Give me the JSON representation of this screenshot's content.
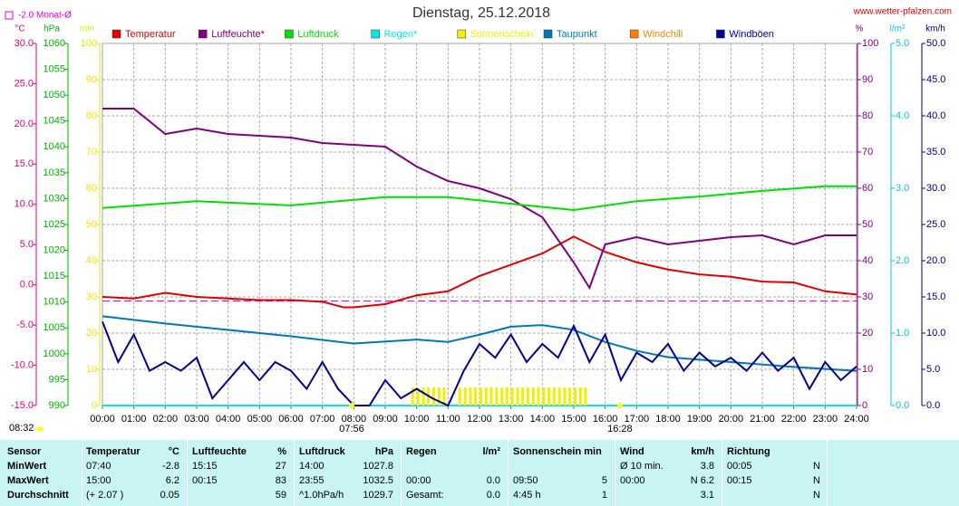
{
  "chart_data": {
    "type": "line",
    "title": "Dienstag, 25.12.2018",
    "source": "www.wetter-pfalzen.com",
    "time_label": "08:32",
    "monthly_avg": {
      "label": "-2.0 Monat-Ø",
      "value": -2.0,
      "axis": "temp",
      "color": "#e000e0"
    },
    "sunrise": {
      "label": "07:56",
      "x": 7.933
    },
    "sunset": {
      "label": "16:28",
      "x": 16.467
    },
    "xlim": [
      0,
      24
    ],
    "xticks": [
      {
        "value": 0,
        "label": "00:00"
      },
      {
        "value": 1,
        "label": "01:00"
      },
      {
        "value": 2,
        "label": "02:00"
      },
      {
        "value": 3,
        "label": "03:00"
      },
      {
        "value": 4,
        "label": "04:00"
      },
      {
        "value": 5,
        "label": "05:00"
      },
      {
        "value": 6,
        "label": "06:00"
      },
      {
        "value": 7,
        "label": "07:00"
      },
      {
        "value": 8,
        "label": "08:00"
      },
      {
        "value": 9,
        "label": "09:00"
      },
      {
        "value": 10,
        "label": "10:00"
      },
      {
        "value": 11,
        "label": "11:00"
      },
      {
        "value": 12,
        "label": "12:00"
      },
      {
        "value": 13,
        "label": "13:00"
      },
      {
        "value": 14,
        "label": "14:00"
      },
      {
        "value": 15,
        "label": "15:00"
      },
      {
        "value": 16,
        "label": "16:00"
      },
      {
        "value": 17,
        "label": "17:00"
      },
      {
        "value": 18,
        "label": "18:00"
      },
      {
        "value": 19,
        "label": "19:00"
      },
      {
        "value": 20,
        "label": "20:00"
      },
      {
        "value": 21,
        "label": "21:00"
      },
      {
        "value": 22,
        "label": "22:00"
      },
      {
        "value": 23,
        "label": "23:00"
      },
      {
        "value": 24,
        "label": "24:00"
      }
    ],
    "grid": true,
    "axes": {
      "temp": {
        "unit": "°C",
        "color": "#e0007a",
        "lim": [
          -15,
          30
        ],
        "ticks": [
          {
            "value": -15,
            "label": "-15.0"
          },
          {
            "value": -10,
            "label": "-10.0"
          },
          {
            "value": -5,
            "label": "-5.0"
          },
          {
            "value": 0,
            "label": "0.0"
          },
          {
            "value": 5,
            "label": "5.0"
          },
          {
            "value": 10,
            "label": "10.0"
          },
          {
            "value": 15,
            "label": "15.0"
          },
          {
            "value": 20,
            "label": "20.0"
          },
          {
            "value": 25,
            "label": "25.0"
          },
          {
            "value": 30,
            "label": "30.0"
          }
        ]
      },
      "press": {
        "unit": "hPa",
        "color": "#00b000",
        "lim": [
          990,
          1060
        ],
        "ticks": [
          990,
          995,
          1000,
          1005,
          1010,
          1015,
          1020,
          1025,
          1030,
          1035,
          1040,
          1045,
          1050,
          1055,
          1060
        ]
      },
      "sun": {
        "unit": "min",
        "color": "#e8e800",
        "lim": [
          0,
          100
        ],
        "ticks": [
          0,
          10,
          20,
          30,
          40,
          50,
          60,
          70,
          80,
          90,
          100
        ]
      },
      "hum": {
        "unit": "%",
        "color": "#800080",
        "lim": [
          0,
          100
        ],
        "ticks": [
          0,
          10,
          20,
          30,
          40,
          50,
          60,
          70,
          80,
          90,
          100
        ]
      },
      "rain": {
        "unit": "l/m²",
        "color": "#00c8e0",
        "lim": [
          0,
          5
        ],
        "ticks": [
          {
            "value": 0,
            "label": "0.0"
          },
          {
            "value": 1,
            "label": "1.0"
          },
          {
            "value": 2,
            "label": "2.0"
          },
          {
            "value": 3,
            "label": "3.0"
          },
          {
            "value": 4,
            "label": "4.0"
          },
          {
            "value": 5,
            "label": "5.0"
          }
        ]
      },
      "wind": {
        "unit": "km/h",
        "color": "#000080",
        "lim": [
          0,
          50
        ],
        "ticks": [
          {
            "value": 0,
            "label": "0.0"
          },
          {
            "value": 5,
            "label": "5.0"
          },
          {
            "value": 10,
            "label": "10.0"
          },
          {
            "value": 15,
            "label": "15.0"
          },
          {
            "value": 20,
            "label": "20.0"
          },
          {
            "value": 25,
            "label": "25.0"
          },
          {
            "value": 30,
            "label": "30.0"
          },
          {
            "value": 35,
            "label": "35.0"
          },
          {
            "value": 40,
            "label": "40.0"
          },
          {
            "value": 45,
            "label": "45.0"
          },
          {
            "value": 50,
            "label": "50.0"
          }
        ]
      }
    },
    "series": [
      {
        "name": "Temperatur",
        "color": "#e00000",
        "axis": "temp",
        "x": [
          0,
          1,
          2,
          3,
          4,
          5,
          6,
          7,
          7.67,
          8,
          9,
          10,
          11,
          12,
          13,
          14,
          15,
          16,
          17,
          18,
          19,
          20,
          21,
          22,
          23,
          24
        ],
        "values": [
          -1.5,
          -1.7,
          -1.0,
          -1.5,
          -1.7,
          -1.9,
          -1.9,
          -2.1,
          -2.8,
          -2.8,
          -2.4,
          -1.3,
          -0.8,
          1.1,
          2.5,
          3.9,
          6.0,
          4.1,
          2.8,
          1.9,
          1.3,
          1.0,
          0.4,
          0.3,
          -0.8,
          -1.2
        ]
      },
      {
        "name": "Luftfeuchte*",
        "color": "#800080",
        "axis": "hum",
        "x": [
          0,
          1,
          2,
          3,
          4,
          5,
          6,
          7,
          8,
          9,
          10,
          11,
          12,
          13,
          14,
          15,
          15.5,
          16,
          17,
          18,
          19,
          20,
          21,
          22,
          23,
          24
        ],
        "values": [
          82,
          82,
          75,
          76.5,
          75,
          74.5,
          74,
          72.5,
          72,
          71.5,
          66,
          62,
          60,
          57,
          52,
          39.5,
          32.5,
          44.5,
          46.5,
          44.5,
          45.5,
          46.5,
          47,
          44.5,
          47,
          47
        ]
      },
      {
        "name": "Luftdruck",
        "color": "#00e000",
        "axis": "press",
        "x": [
          0,
          3,
          6,
          9,
          11,
          13,
          15,
          17,
          19,
          21,
          23,
          24
        ],
        "values": [
          1028.2,
          1029.5,
          1028.7,
          1030.3,
          1030.3,
          1029.0,
          1027.8,
          1029.5,
          1030.4,
          1031.5,
          1032.4,
          1032.4
        ]
      },
      {
        "name": "Regen*",
        "color": "#00e8e8",
        "axis": "rain",
        "x": [
          0,
          24
        ],
        "values": [
          0,
          0
        ]
      },
      {
        "name": "Sonnenschein",
        "color": "#f0f000",
        "axis": "sun",
        "bars": true,
        "x": [
          9.83,
          10,
          10.17,
          10.33,
          10.5,
          10.67,
          10.83,
          11.33,
          11.5,
          11.67,
          11.83,
          12,
          12.17,
          12.33,
          12.5,
          12.67,
          12.83,
          13,
          13.17,
          13.33,
          13.5,
          13.67,
          13.83,
          14,
          14.17,
          14.33,
          14.5,
          14.67,
          14.83,
          15,
          15.17,
          15.33
        ],
        "values": [
          5,
          5,
          5,
          5,
          5,
          5,
          5,
          5,
          5,
          5,
          5,
          5,
          5,
          5,
          5,
          5,
          5,
          5,
          5,
          5,
          5,
          5,
          5,
          5,
          5,
          5,
          5,
          5,
          5,
          5,
          5,
          5
        ]
      },
      {
        "name": "Taupunkt",
        "color": "#0078b8",
        "axis": "temp",
        "x": [
          0,
          2,
          4,
          6,
          8,
          10,
          11,
          12,
          13,
          14,
          15,
          16,
          17,
          18,
          20,
          22,
          24
        ],
        "values": [
          -3.9,
          -4.8,
          -5.6,
          -6.4,
          -7.3,
          -6.8,
          -7.1,
          -6.2,
          -5.2,
          -5.0,
          -5.6,
          -7.1,
          -8.2,
          -9.0,
          -9.6,
          -10.2,
          -10.7
        ]
      },
      {
        "name": "Windchill",
        "color": "#ff8000"
      },
      {
        "name": "Windböen",
        "color": "#000090",
        "axis": "wind",
        "x": [
          0,
          0.5,
          1,
          1.5,
          2,
          2.5,
          3,
          3.5,
          4,
          4.5,
          5,
          5.5,
          6,
          6.5,
          7,
          7.5,
          8,
          8.5,
          9,
          9.5,
          10,
          10.5,
          11,
          11.5,
          12,
          12.5,
          13,
          13.5,
          14,
          14.5,
          15,
          15.5,
          16,
          16.5,
          17,
          17.5,
          18,
          18.5,
          19,
          19.5,
          20,
          20.5,
          21,
          21.5,
          22,
          22.5,
          23,
          23.5,
          24
        ],
        "values": [
          11.6,
          6,
          9.8,
          4.8,
          6,
          4.8,
          6.6,
          1,
          3.5,
          6,
          3.5,
          6,
          4.8,
          2.3,
          6,
          2.3,
          0,
          0,
          3.5,
          1,
          2.3,
          1,
          0,
          4.8,
          8.5,
          6.6,
          9.8,
          6,
          8.5,
          6.6,
          11,
          6,
          9.8,
          3.5,
          7.3,
          6,
          8.5,
          4.8,
          7.3,
          5.4,
          6.6,
          4.8,
          7.3,
          4.8,
          6.6,
          2.3,
          6,
          3.5,
          5.4
        ]
      }
    ]
  },
  "table": {
    "header": [
      "Sensor",
      "Temperatur",
      "°C",
      "Luftfeuchte",
      "%",
      "Luftdruck",
      "hPa",
      "Regen",
      "l/m²",
      "Sonnenschein min",
      null,
      "Wind",
      "km/h",
      "Richtung",
      null
    ],
    "rows": [
      [
        "MinWert",
        "07:40",
        "-2.8",
        "15:15",
        "27",
        "14:00",
        "1027.8",
        null,
        null,
        null,
        null,
        "Ø 10 min.",
        "3.8",
        "00:05",
        "N"
      ],
      [
        "MaxWert",
        "15:00",
        "6.2",
        "00:15",
        "83",
        "23:55",
        "1032.5",
        "00:00",
        "0.0",
        "09:50",
        "5",
        "00:00",
        "N 6.2",
        "00:15",
        "N"
      ],
      [
        "Durchschnitt",
        "(+ 2.07 )",
        "0.05",
        null,
        "59",
        "^1.0hPa/h",
        "1029.7",
        "Gesamt:",
        "0.0",
        "4:45 h",
        "1",
        null,
        "3.1",
        null,
        "N"
      ]
    ]
  }
}
